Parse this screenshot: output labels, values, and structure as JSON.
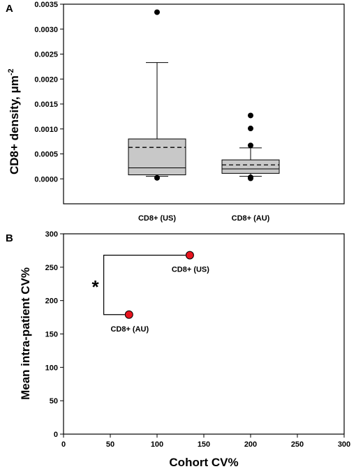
{
  "chart_data": [
    {
      "panel": "A",
      "type": "box",
      "ylabel": "CD8+ density, μm",
      "ylabel_superscript": "-2",
      "ylim": [
        -0.0005,
        0.0035
      ],
      "yticks": [
        "0.0000",
        "0.0005",
        "0.0010",
        "0.0015",
        "0.0020",
        "0.0025",
        "0.0030",
        "0.0035"
      ],
      "ytick_values": [
        0,
        0.0005,
        0.001,
        0.0015,
        0.002,
        0.0025,
        0.003,
        0.0035
      ],
      "categories": [
        "CD8+ (US)",
        "CD8+ (AU)"
      ],
      "box_color": "#c8c8c8",
      "boxes": [
        {
          "label": "CD8+ (US)",
          "whisker_low": 5e-05,
          "q1": 8e-05,
          "median": 0.00022,
          "mean": 0.00063,
          "q3": 0.0008,
          "whisker_high": 0.00233,
          "outliers": [
            0.00334,
            2e-05
          ]
        },
        {
          "label": "CD8+ (AU)",
          "whisker_low": 5e-05,
          "q1": 0.00011,
          "median": 0.0002,
          "mean": 0.00028,
          "q3": 0.00038,
          "whisker_high": 0.00062,
          "outliers": [
            0.00127,
            0.00101,
            0.00067,
            3e-05,
            1e-05
          ]
        }
      ]
    },
    {
      "panel": "B",
      "type": "scatter",
      "xlabel": "Cohort CV%",
      "ylabel": "Mean intra-patient CV%",
      "xlim": [
        0,
        300
      ],
      "ylim": [
        0,
        300
      ],
      "xticks": [
        "0",
        "50",
        "100",
        "150",
        "200",
        "250",
        "300"
      ],
      "xtick_values": [
        0,
        50,
        100,
        150,
        200,
        250,
        300
      ],
      "yticks": [
        "0",
        "50",
        "100",
        "150",
        "200",
        "250",
        "300"
      ],
      "ytick_values": [
        0,
        50,
        100,
        150,
        200,
        250,
        300
      ],
      "point_color": "#e8141e",
      "points": [
        {
          "label": "CD8+ (US)",
          "x": 135,
          "y": 268
        },
        {
          "label": "CD8+ (AU)",
          "x": 70,
          "y": 179
        }
      ],
      "significance_marker": "*"
    }
  ]
}
